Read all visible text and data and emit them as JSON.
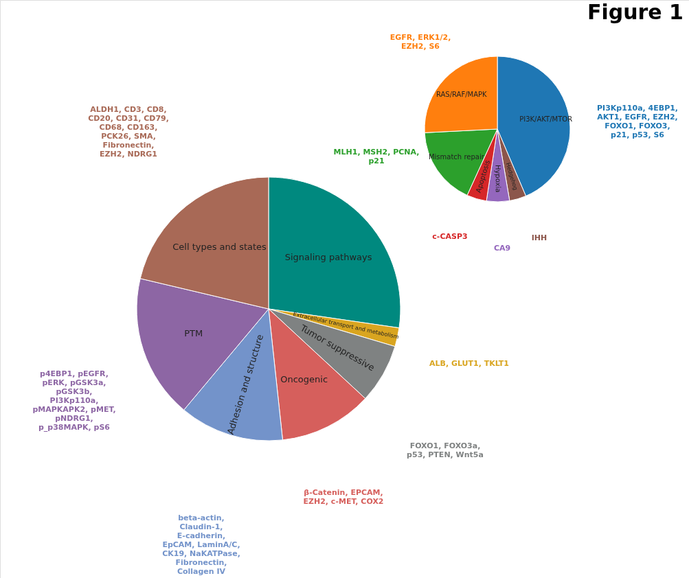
{
  "chart_data": [
    {
      "type": "pie",
      "title": "Figure 1",
      "categories": [
        "Signaling pathways",
        "Extracellular transport and metabolism",
        "Tumor suppressive",
        "Oncogenic",
        "Adhesion and structure",
        "PTM",
        "Cell types and states"
      ],
      "values": [
        27.3,
        2.3,
        7.3,
        11.4,
        12.8,
        17.6,
        21.3
      ],
      "colors": [
        "#00897f",
        "#d9a520",
        "#7f8282",
        "#d65f5c",
        "#7393ca",
        "#8d66a4",
        "#a86956"
      ],
      "annotations": [
        {
          "text": "ALDH1, CD3, CD8, CD20, CD31, CD79, CD68, CD163, PCK26, SMA, Fibronectin, EZH2, NDRG1",
          "x": "Cell types and states"
        },
        {
          "text": "p4EBP1, pEGFR, pERK, pGSK3a, pGSK3b, PI3Kp110a, pMAPKAPK2, pMET, pNDRG1, p_p38MAPK, pS6",
          "x": "PTM"
        },
        {
          "text": "beta-actin, Claudin-1, E-cadherin, EpCAM, LaminA/C, CK19, NaKATPase, Fibronectin, Collagen IV",
          "x": "Adhesion and structure"
        },
        {
          "text": "β-Catenin, EPCAM, EZH2, c-MET, COX2",
          "x": "Oncogenic"
        },
        {
          "text": "FOXO1, FOXO3a, p53, PTEN, Wnt5a",
          "x": "Tumor suppressive"
        },
        {
          "text": "ALB, GLUT1, TKLT1",
          "x": "Extracellular transport and metabolism"
        }
      ]
    },
    {
      "type": "pie",
      "categories": [
        "PI3K/AKT/MTOR",
        "Hedgehog",
        "Hypoxia",
        "Apoptosis",
        "Mismatch repair",
        "RAS/RAF/MAPK"
      ],
      "values": [
        43.6,
        3.7,
        5.1,
        4.4,
        17.4,
        25.8
      ],
      "colors": [
        "#1f77b4",
        "#8c564b",
        "#9467bd",
        "#d62728",
        "#2ca02c",
        "#ff7f0e"
      ],
      "annotations": [
        {
          "text": "EGFR, ERK1/2, EZH2, S6",
          "x": "RAS/RAF/MAPK"
        },
        {
          "text": "PI3Kp110a, 4EBP1, AKT1, EGFR, EZH2, FOXO1, FOXO3, p21, p53, S6",
          "x": "PI3K/AKT/MTOR"
        },
        {
          "text": "MLH1, MSH2, PCNA, p21",
          "x": "Mismatch repair"
        },
        {
          "text": "c-CASP3",
          "x": "Apoptosis"
        },
        {
          "text": "CA9",
          "x": "Hypoxia"
        },
        {
          "text": "IHH",
          "x": "Hedgehog"
        }
      ]
    }
  ]
}
